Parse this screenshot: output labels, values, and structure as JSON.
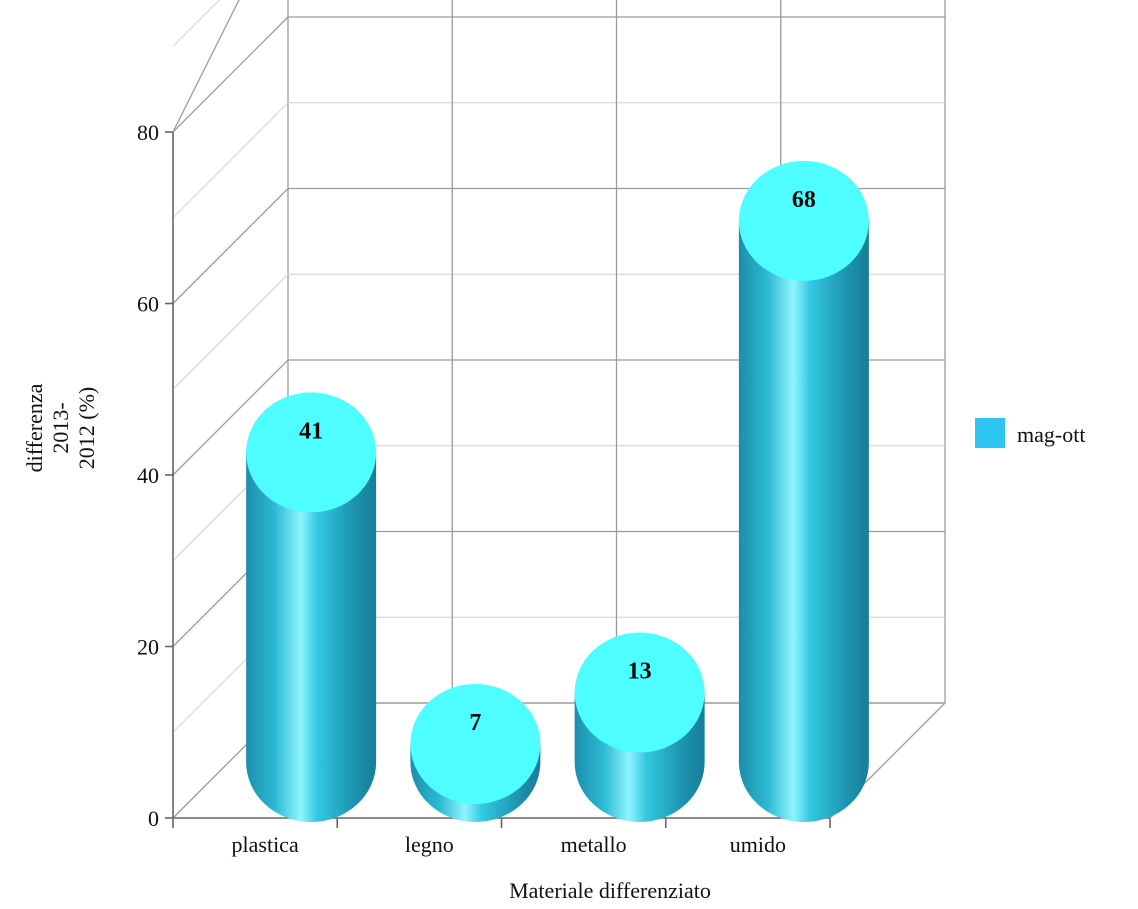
{
  "chart_data": {
    "type": "bar",
    "style": "3d-cylinder",
    "categories": [
      "plastica",
      "legno",
      "metallo",
      "umido"
    ],
    "series": [
      {
        "name": "mag-ott",
        "values": [
          41,
          7,
          13,
          68
        ],
        "color": "#2ec4f0"
      }
    ],
    "data_labels": [
      "41",
      "7",
      "13",
      "68"
    ],
    "y_ticks": [
      "0",
      "20",
      "40",
      "60",
      "80"
    ],
    "ylim": [
      0,
      80
    ],
    "xlabel": "Materiale differenziato",
    "ylabel_lines": [
      "differenza",
      "2013-",
      "2012 (%)"
    ],
    "legend_position": "right",
    "grid": true,
    "colors": {
      "bar_side": "#2aa8c4",
      "bar_top": "#4dfdff",
      "grid": "#9a9a9a"
    }
  }
}
